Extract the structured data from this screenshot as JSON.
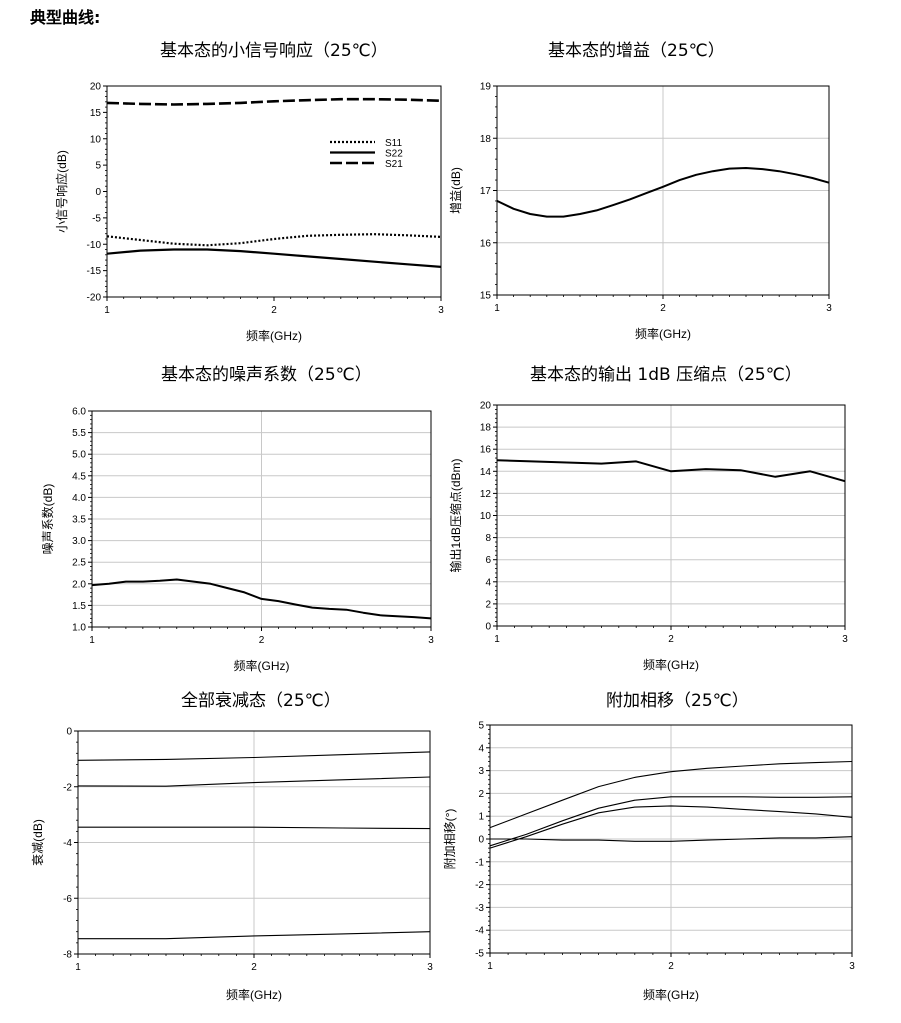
{
  "page": {
    "heading": "典型曲线:"
  },
  "chart_data": [
    {
      "type": "line",
      "title": "基本态的小信号响应（25℃）",
      "xlabel": "频率(GHz)",
      "ylabel": "小信号响应(dB)",
      "xlim": [
        1,
        3
      ],
      "ylim": [
        -20,
        20
      ],
      "xticks": [
        1,
        2,
        3
      ],
      "yticks": [
        -20,
        -15,
        -10,
        -5,
        0,
        5,
        10,
        15,
        20
      ],
      "grid": false,
      "legend": "top-right",
      "series": [
        {
          "name": "S11",
          "style": "dotted",
          "x": [
            1.0,
            1.2,
            1.4,
            1.6,
            1.8,
            2.0,
            2.2,
            2.4,
            2.6,
            2.8,
            3.0
          ],
          "y": [
            -8.5,
            -9.2,
            -9.9,
            -10.2,
            -9.8,
            -9.0,
            -8.4,
            -8.2,
            -8.1,
            -8.3,
            -8.6
          ]
        },
        {
          "name": "S22",
          "style": "solid",
          "x": [
            1.0,
            1.2,
            1.4,
            1.6,
            1.8,
            2.0,
            2.2,
            2.4,
            2.6,
            2.8,
            3.0
          ],
          "y": [
            -11.8,
            -11.2,
            -11.0,
            -11.0,
            -11.3,
            -11.8,
            -12.3,
            -12.8,
            -13.3,
            -13.8,
            -14.3
          ]
        },
        {
          "name": "S21",
          "style": "dashed",
          "x": [
            1.0,
            1.2,
            1.4,
            1.6,
            1.8,
            2.0,
            2.2,
            2.4,
            2.6,
            2.8,
            3.0
          ],
          "y": [
            16.8,
            16.6,
            16.5,
            16.6,
            16.8,
            17.1,
            17.3,
            17.5,
            17.5,
            17.4,
            17.2
          ]
        }
      ]
    },
    {
      "type": "line",
      "title": "基本态的增益（25℃）",
      "xlabel": "频率(GHz)",
      "ylabel": "增益(dB)",
      "xlim": [
        1,
        3
      ],
      "ylim": [
        15,
        19
      ],
      "xticks": [
        1,
        2,
        3
      ],
      "yticks": [
        15,
        16,
        17,
        18,
        19
      ],
      "grid": true,
      "series": [
        {
          "name": "",
          "style": "bold",
          "x": [
            1.0,
            1.1,
            1.2,
            1.3,
            1.4,
            1.5,
            1.6,
            1.7,
            1.8,
            1.9,
            2.0,
            2.1,
            2.2,
            2.3,
            2.4,
            2.5,
            2.6,
            2.7,
            2.8,
            2.9,
            3.0
          ],
          "y": [
            16.8,
            16.65,
            16.55,
            16.5,
            16.5,
            16.55,
            16.62,
            16.72,
            16.83,
            16.95,
            17.07,
            17.2,
            17.3,
            17.37,
            17.42,
            17.43,
            17.41,
            17.37,
            17.31,
            17.24,
            17.15
          ]
        }
      ]
    },
    {
      "type": "line",
      "title": "基本态的噪声系数（25℃）",
      "xlabel": "频率(GHz)",
      "ylabel": "噪声系数(dB)",
      "xlim": [
        1,
        3
      ],
      "ylim": [
        1.0,
        6.0
      ],
      "xticks": [
        1,
        2,
        3
      ],
      "yticks": [
        1.0,
        1.5,
        2.0,
        2.5,
        3.0,
        3.5,
        4.0,
        4.5,
        5.0,
        5.5,
        6.0
      ],
      "grid": true,
      "series": [
        {
          "name": "",
          "style": "bold",
          "x": [
            1.0,
            1.1,
            1.2,
            1.3,
            1.4,
            1.5,
            1.6,
            1.7,
            1.8,
            1.9,
            2.0,
            2.1,
            2.2,
            2.3,
            2.4,
            2.5,
            2.6,
            2.7,
            2.8,
            2.9,
            3.0
          ],
          "y": [
            1.97,
            2.0,
            2.05,
            2.05,
            2.07,
            2.1,
            2.05,
            2.0,
            1.9,
            1.8,
            1.65,
            1.6,
            1.52,
            1.45,
            1.42,
            1.4,
            1.33,
            1.27,
            1.25,
            1.23,
            1.2
          ]
        }
      ]
    },
    {
      "type": "line",
      "title": "基本态的输出 1dB 压缩点（25℃）",
      "xlabel": "频率(GHz)",
      "ylabel": "输出1dB压缩点(dBm)",
      "xlim": [
        1,
        3
      ],
      "ylim": [
        0,
        20
      ],
      "xticks": [
        1,
        2,
        3
      ],
      "yticks": [
        0,
        2,
        4,
        6,
        8,
        10,
        12,
        14,
        16,
        18,
        20
      ],
      "grid": true,
      "series": [
        {
          "name": "",
          "style": "bold",
          "x": [
            1.0,
            1.2,
            1.4,
            1.6,
            1.8,
            2.0,
            2.2,
            2.4,
            2.6,
            2.8,
            3.0
          ],
          "y": [
            15.0,
            14.9,
            14.8,
            14.7,
            14.9,
            14.0,
            14.2,
            14.1,
            13.5,
            14.0,
            13.1
          ]
        }
      ]
    },
    {
      "type": "line",
      "title": "全部衰减态（25℃）",
      "xlabel": "频率(GHz)",
      "ylabel": "衰减(dB)",
      "xlim": [
        1,
        3
      ],
      "ylim": [
        -8,
        0
      ],
      "xticks": [
        1,
        2,
        3
      ],
      "yticks": [
        -8,
        -6,
        -4,
        -2,
        0
      ],
      "grid": true,
      "series": [
        {
          "name": "",
          "style": "thin",
          "x": [
            1.0,
            1.5,
            2.0,
            2.5,
            3.0
          ],
          "y": [
            -1.05,
            -1.02,
            -0.95,
            -0.85,
            -0.75
          ]
        },
        {
          "name": "",
          "style": "thin",
          "x": [
            1.0,
            1.5,
            2.0,
            2.5,
            3.0
          ],
          "y": [
            -1.97,
            -1.98,
            -1.85,
            -1.75,
            -1.65
          ]
        },
        {
          "name": "",
          "style": "thin",
          "x": [
            1.0,
            1.5,
            2.0,
            2.5,
            3.0
          ],
          "y": [
            -3.45,
            -3.45,
            -3.45,
            -3.48,
            -3.5
          ]
        },
        {
          "name": "",
          "style": "thin",
          "x": [
            1.0,
            1.5,
            2.0,
            2.5,
            3.0
          ],
          "y": [
            -7.45,
            -7.45,
            -7.35,
            -7.28,
            -7.2
          ]
        }
      ]
    },
    {
      "type": "line",
      "title": "附加相移（25℃）",
      "xlabel": "频率(GHz)",
      "ylabel": "附加相移(°)",
      "xlim": [
        1,
        3
      ],
      "ylim": [
        -5,
        5
      ],
      "xticks": [
        1,
        2,
        3
      ],
      "yticks": [
        -5,
        -4,
        -3,
        -2,
        -1,
        0,
        1,
        2,
        3,
        4,
        5
      ],
      "grid": true,
      "series": [
        {
          "name": "",
          "style": "thin",
          "x": [
            1.0,
            1.2,
            1.4,
            1.6,
            1.8,
            2.0,
            2.2,
            2.4,
            2.6,
            2.8,
            3.0
          ],
          "y": [
            0.5,
            1.1,
            1.7,
            2.3,
            2.7,
            2.95,
            3.1,
            3.2,
            3.3,
            3.35,
            3.4
          ]
        },
        {
          "name": "",
          "style": "thin",
          "x": [
            1.0,
            1.2,
            1.4,
            1.6,
            1.8,
            2.0,
            2.2,
            2.4,
            2.6,
            2.8,
            3.0
          ],
          "y": [
            -0.3,
            0.2,
            0.8,
            1.35,
            1.7,
            1.85,
            1.85,
            1.85,
            1.83,
            1.83,
            1.85
          ]
        },
        {
          "name": "",
          "style": "thin",
          "x": [
            1.0,
            1.2,
            1.4,
            1.6,
            1.8,
            2.0,
            2.2,
            2.4,
            2.6,
            2.8,
            3.0
          ],
          "y": [
            -0.4,
            0.1,
            0.65,
            1.15,
            1.4,
            1.45,
            1.4,
            1.3,
            1.2,
            1.1,
            0.95
          ]
        },
        {
          "name": "",
          "style": "thin",
          "x": [
            1.0,
            1.2,
            1.4,
            1.6,
            1.8,
            2.0,
            2.2,
            2.4,
            2.6,
            2.8,
            3.0
          ],
          "y": [
            0.0,
            0.0,
            -0.05,
            -0.05,
            -0.1,
            -0.1,
            -0.05,
            0.0,
            0.05,
            0.05,
            0.1
          ]
        }
      ]
    }
  ]
}
